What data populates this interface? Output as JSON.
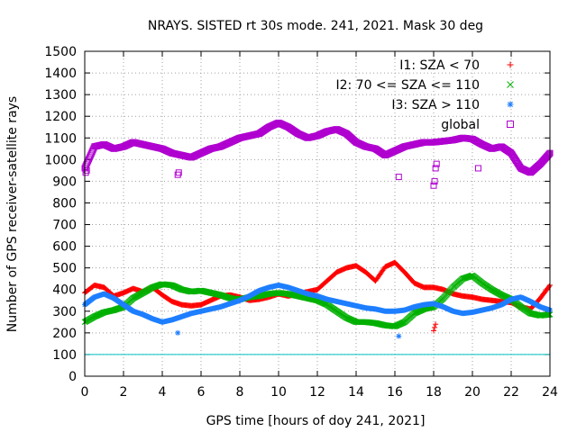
{
  "chart_data": {
    "type": "scatter",
    "title": "NRAYS. SISTED rt 30s mode. 241, 2021. Mask 30 deg",
    "xlabel": "GPS time [hours of doy 241, 2021]",
    "ylabel": "Number of GPS receiver-satellite rays",
    "xlim": [
      0,
      24
    ],
    "ylim": [
      0,
      1500
    ],
    "xticks": [
      0,
      2,
      4,
      6,
      8,
      10,
      12,
      14,
      16,
      18,
      20,
      22,
      24
    ],
    "yticks": [
      0,
      100,
      200,
      300,
      400,
      500,
      600,
      700,
      800,
      900,
      1000,
      1100,
      1200,
      1300,
      1400,
      1500
    ],
    "grid": true,
    "legend_position": "top-right",
    "reference_line": {
      "y": 100,
      "color": "#00c0c0"
    },
    "series": [
      {
        "name": "I1: SZA < 70",
        "marker": "plus",
        "color": "#ff0000",
        "x": [
          0,
          0.5,
          1,
          1.5,
          2,
          2.5,
          3,
          3.5,
          4,
          4.5,
          5,
          5.5,
          6,
          6.5,
          7,
          7.5,
          8,
          8.5,
          9,
          9.5,
          10,
          10.5,
          11,
          11.5,
          12,
          12.5,
          13,
          13.5,
          14,
          14.5,
          15,
          15.5,
          16,
          16.5,
          17,
          17.5,
          18,
          18.5,
          19,
          19.5,
          20,
          20.5,
          21,
          21.5,
          22,
          22.5,
          23,
          23.5,
          24
        ],
        "y": [
          385,
          420,
          410,
          370,
          385,
          405,
          390,
          410,
          375,
          345,
          330,
          325,
          330,
          350,
          370,
          375,
          365,
          350,
          355,
          365,
          380,
          370,
          380,
          390,
          400,
          440,
          480,
          500,
          510,
          480,
          440,
          505,
          525,
          480,
          430,
          410,
          410,
          400,
          380,
          370,
          365,
          355,
          350,
          345,
          340,
          320,
          310,
          360,
          420
        ]
      },
      {
        "name": "I2: 70 <= SZA <= 110",
        "marker": "x",
        "color": "#00b000",
        "x": [
          0,
          0.5,
          1,
          1.5,
          2,
          2.5,
          3,
          3.5,
          4,
          4.5,
          5,
          5.5,
          6,
          6.5,
          7,
          7.5,
          8,
          8.5,
          9,
          9.5,
          10,
          10.5,
          11,
          11.5,
          12,
          12.5,
          13,
          13.5,
          14,
          14.5,
          15,
          15.5,
          16,
          16.5,
          17,
          17.5,
          18,
          18.5,
          19,
          19.5,
          20,
          20.5,
          21,
          21.5,
          22,
          22.5,
          23,
          23.5,
          24
        ],
        "y": [
          250,
          275,
          295,
          305,
          320,
          360,
          385,
          410,
          425,
          420,
          400,
          390,
          395,
          385,
          375,
          360,
          355,
          365,
          370,
          380,
          385,
          380,
          370,
          360,
          350,
          330,
          300,
          270,
          250,
          250,
          245,
          235,
          230,
          250,
          290,
          310,
          320,
          360,
          410,
          450,
          465,
          430,
          400,
          375,
          355,
          320,
          290,
          280,
          285
        ]
      },
      {
        "name": "I3: SZA > 110",
        "marker": "asterisk",
        "color": "#1e7fff",
        "x": [
          0,
          0.5,
          1,
          1.5,
          2,
          2.5,
          3,
          3.5,
          4,
          4.5,
          5,
          5.5,
          6,
          6.5,
          7,
          7.5,
          8,
          8.5,
          9,
          9.5,
          10,
          10.5,
          11,
          11.5,
          12,
          12.5,
          13,
          13.5,
          14,
          14.5,
          15,
          15.5,
          16,
          16.5,
          17,
          17.5,
          18,
          18.5,
          19,
          19.5,
          20,
          20.5,
          21,
          21.5,
          22,
          22.5,
          23,
          23.5,
          24
        ],
        "y": [
          330,
          365,
          380,
          360,
          330,
          300,
          285,
          265,
          250,
          260,
          275,
          290,
          300,
          310,
          320,
          335,
          350,
          370,
          395,
          410,
          420,
          410,
          395,
          380,
          370,
          355,
          345,
          335,
          325,
          315,
          310,
          300,
          300,
          305,
          320,
          330,
          335,
          320,
          300,
          290,
          295,
          305,
          315,
          330,
          355,
          365,
          345,
          320,
          305
        ]
      },
      {
        "name": "global",
        "marker": "square",
        "color": "#b000d0",
        "x": [
          0,
          0.5,
          1,
          1.5,
          2,
          2.5,
          3,
          3.5,
          4,
          4.5,
          5,
          5.5,
          6,
          6.5,
          7,
          7.5,
          8,
          8.5,
          9,
          9.5,
          10,
          10.5,
          11,
          11.5,
          12,
          12.5,
          13,
          13.5,
          14,
          14.5,
          15,
          15.5,
          16,
          16.5,
          17,
          17.5,
          18,
          18.5,
          19,
          19.5,
          20,
          20.5,
          21,
          21.5,
          22,
          22.5,
          23,
          23.5,
          24
        ],
        "y": [
          960,
          1060,
          1070,
          1050,
          1060,
          1080,
          1070,
          1060,
          1050,
          1030,
          1020,
          1010,
          1030,
          1050,
          1060,
          1080,
          1100,
          1110,
          1120,
          1150,
          1170,
          1150,
          1120,
          1100,
          1110,
          1130,
          1140,
          1120,
          1080,
          1060,
          1050,
          1020,
          1040,
          1060,
          1070,
          1080,
          1080,
          1085,
          1090,
          1100,
          1095,
          1070,
          1050,
          1060,
          1030,
          960,
          940,
          980,
          1030
        ]
      }
    ],
    "outliers": [
      {
        "series": "global",
        "x": [
          0.05,
          0.1,
          4.8,
          4.85,
          16.2,
          18,
          18.05,
          18.1,
          18.15,
          20.3
        ],
        "y": [
          940,
          950,
          930,
          940,
          920,
          880,
          900,
          960,
          980,
          960
        ]
      },
      {
        "series": "I1: SZA < 70",
        "x": [
          18,
          18.05,
          18.1
        ],
        "y": [
          210,
          225,
          240
        ]
      },
      {
        "series": "I3: SZA > 110",
        "x": [
          4.8,
          16.2
        ],
        "y": [
          200,
          185
        ]
      }
    ]
  }
}
